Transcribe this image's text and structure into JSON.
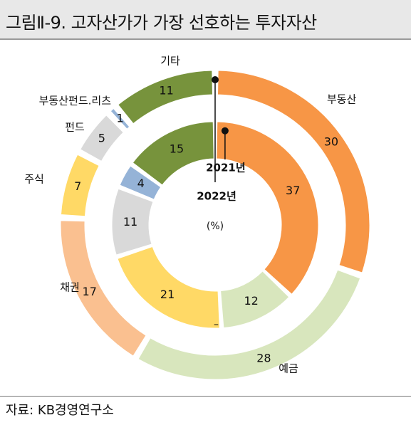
{
  "title": "그림Ⅱ-9. 고자산가가 가장 선호하는 투자자산",
  "source": "자료: KB경영연구소",
  "chart_data": {
    "type": "donut",
    "unit_label": "(%)",
    "categories": [
      "부동산",
      "예금",
      "채권",
      "주식",
      "펀드",
      "부동산펀드.리츠",
      "기타"
    ],
    "series": [
      {
        "name": "2022년",
        "values": [
          30,
          28,
          17,
          7,
          5,
          1,
          11
        ]
      },
      {
        "name": "2021년",
        "values": [
          37,
          12,
          null,
          21,
          11,
          4,
          15
        ]
      }
    ],
    "inner_missing_value_label": "–",
    "colors": {
      "부동산": "#f79646",
      "예금": "#d8e6bd",
      "채권": "#fac090",
      "주식": "#ffd966",
      "펀드": "#d9d9d9",
      "부동산펀드.리츠": "#95b3d7",
      "기타": "#77933c"
    }
  }
}
